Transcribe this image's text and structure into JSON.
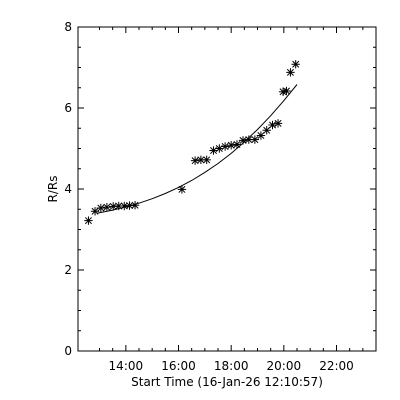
{
  "chart_data": {
    "type": "scatter",
    "title": "",
    "xlabel": "Start Time (16-Jan-26 12:10:57)",
    "ylabel": "R/Rs",
    "xlim": [
      12.183,
      23.5
    ],
    "ylim": [
      0,
      8
    ],
    "x_ticks": [
      {
        "value": 14,
        "label": "14:00"
      },
      {
        "value": 16,
        "label": "16:00"
      },
      {
        "value": 18,
        "label": "18:00"
      },
      {
        "value": 20,
        "label": "20:00"
      },
      {
        "value": 22,
        "label": "22:00"
      }
    ],
    "y_ticks": [
      {
        "value": 0,
        "label": "0"
      },
      {
        "value": 2,
        "label": "2"
      },
      {
        "value": 4,
        "label": "4"
      },
      {
        "value": 6,
        "label": "6"
      },
      {
        "value": 8,
        "label": "8"
      }
    ],
    "grid": false,
    "marker": "asterisk",
    "series": [
      {
        "points": [
          [
            12.58,
            3.22
          ],
          [
            12.83,
            3.45
          ],
          [
            13.05,
            3.53
          ],
          [
            13.28,
            3.55
          ],
          [
            13.52,
            3.57
          ],
          [
            13.73,
            3.58
          ],
          [
            13.94,
            3.58
          ],
          [
            14.14,
            3.59
          ],
          [
            14.35,
            3.6
          ],
          [
            16.13,
            3.99
          ],
          [
            16.63,
            4.7
          ],
          [
            16.85,
            4.72
          ],
          [
            17.07,
            4.72
          ],
          [
            17.33,
            4.95
          ],
          [
            17.55,
            5.0
          ],
          [
            17.77,
            5.05
          ],
          [
            18.0,
            5.08
          ],
          [
            18.22,
            5.1
          ],
          [
            18.45,
            5.2
          ],
          [
            18.67,
            5.22
          ],
          [
            18.9,
            5.22
          ],
          [
            19.13,
            5.32
          ],
          [
            19.35,
            5.45
          ],
          [
            19.57,
            5.58
          ],
          [
            19.78,
            5.62
          ],
          [
            19.97,
            6.4
          ],
          [
            20.1,
            6.42
          ],
          [
            20.25,
            6.88
          ],
          [
            20.45,
            7.08
          ]
        ]
      }
    ],
    "fit_curve": {
      "x": [
        12.9,
        13.5,
        14.0,
        14.5,
        15.0,
        15.5,
        16.0,
        16.5,
        17.0,
        17.5,
        18.0,
        18.5,
        19.0,
        19.5,
        20.0,
        20.5
      ],
      "y": [
        3.4,
        3.48,
        3.56,
        3.65,
        3.76,
        3.89,
        4.04,
        4.21,
        4.41,
        4.63,
        4.88,
        5.16,
        5.47,
        5.81,
        6.18,
        6.58
      ]
    }
  }
}
